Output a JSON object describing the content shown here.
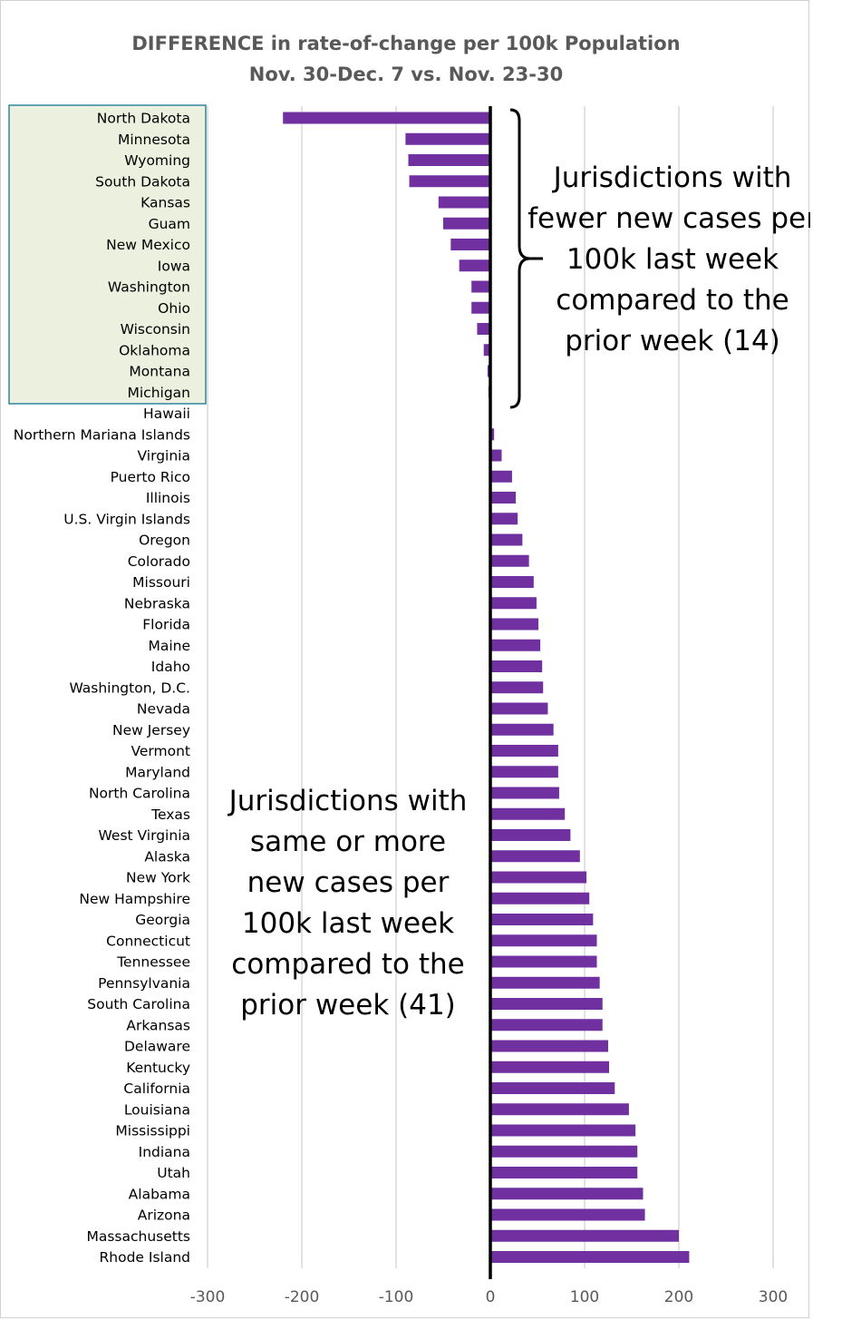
{
  "chart_data": {
    "type": "bar",
    "orientation": "horizontal",
    "title": "DIFFERENCE in rate-of-change per 100k Population",
    "subtitle": "Nov. 30-Dec. 7 vs. Nov. 23-30",
    "categories": [
      "North Dakota",
      "Minnesota",
      "Wyoming",
      "South Dakota",
      "Kansas",
      "Guam",
      "New Mexico",
      "Iowa",
      "Washington",
      "Ohio",
      "Wisconsin",
      "Oklahoma",
      "Montana",
      "Michigan",
      "Hawaii",
      "Northern Mariana Islands",
      "Virginia",
      "Puerto Rico",
      "Illinois",
      "U.S. Virgin Islands",
      "Oregon",
      "Colorado",
      "Missouri",
      "Nebraska",
      "Florida",
      "Maine",
      "Idaho",
      "Washington, D.C.",
      "Nevada",
      "New Jersey",
      "Vermont",
      "Maryland",
      "North Carolina",
      "Texas",
      "West Virginia",
      "Alaska",
      "New York",
      "New Hampshire",
      "Georgia",
      "Connecticut",
      "Tennessee",
      "Pennsylvania",
      "South Carolina",
      "Arkansas",
      "Delaware",
      "Kentucky",
      "California",
      "Louisiana",
      "Mississippi",
      "Indiana",
      "Utah",
      "Alabama",
      "Arizona",
      "Massachusetts",
      "Rhode Island"
    ],
    "values": [
      -220,
      -90,
      -87,
      -86,
      -55,
      -50,
      -42,
      -33,
      -20,
      -20,
      -14,
      -7,
      -3,
      -2,
      0,
      4,
      12,
      23,
      27,
      29,
      34,
      41,
      46,
      49,
      51,
      53,
      55,
      56,
      61,
      67,
      72,
      72,
      73,
      79,
      85,
      95,
      102,
      105,
      109,
      113,
      113,
      116,
      119,
      119,
      125,
      126,
      132,
      147,
      154,
      156,
      156,
      162,
      164,
      200,
      211
    ],
    "xlim": [
      -300,
      300
    ],
    "xticks": [
      -300,
      -200,
      -100,
      0,
      100,
      200,
      300
    ],
    "grid": "vertical",
    "legend": "none",
    "bar_color": "#7030a0",
    "highlight_color": "#ebf1de",
    "highlight_border": "#31859c",
    "highlighted_count": 14,
    "annotations": [
      {
        "id": "fewer",
        "lines": [
          "Jurisdictions with",
          "fewer new cases per",
          "100k last week",
          "compared to the",
          "prior week (14)"
        ]
      },
      {
        "id": "more",
        "lines": [
          "Jurisdictions with",
          "same or more",
          "new cases per",
          "100k last week",
          "compared to the",
          "prior week (41)"
        ]
      }
    ]
  }
}
